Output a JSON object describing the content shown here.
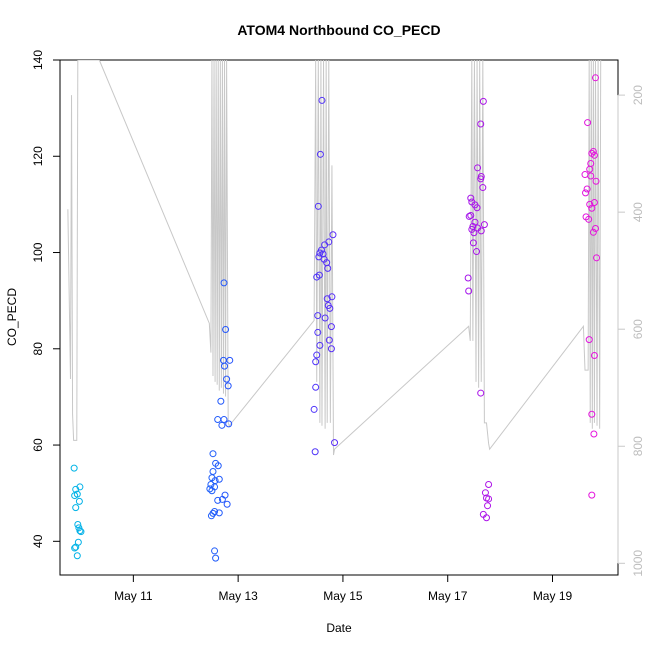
{
  "chart_data": {
    "type": "scatter",
    "title": "ATOM4 Northbound CO_PECD",
    "xlabel": "Date",
    "ylabel": "CO_PECD",
    "xlim": [
      9.6,
      20.25
    ],
    "ylim": [
      33,
      140
    ],
    "x_ticks": [
      {
        "value": 11,
        "label": "May 11"
      },
      {
        "value": 13,
        "label": "May 13"
      },
      {
        "value": 15,
        "label": "May 15"
      },
      {
        "value": 17,
        "label": "May 17"
      },
      {
        "value": 19,
        "label": "May 19"
      }
    ],
    "y_ticks": [
      40,
      60,
      80,
      100,
      120,
      140
    ],
    "right_axis": {
      "range_top_to_bottom": [
        140,
        1020
      ],
      "ticks": [
        200,
        400,
        600,
        800,
        1000
      ]
    },
    "color_gradient": [
      "#00b4e6",
      "#2848ff",
      "#8c14f0",
      "#e614dc"
    ],
    "series": [
      {
        "name": "CO_PECD",
        "points": [
          [
            9.87,
            55.2
          ],
          [
            9.88,
            49.5
          ],
          [
            9.9,
            50.8
          ],
          [
            9.93,
            49.8
          ],
          [
            9.98,
            51.3
          ],
          [
            9.9,
            47
          ],
          [
            9.97,
            48.3
          ],
          [
            9.94,
            43.5
          ],
          [
            9.96,
            42.8
          ],
          [
            9.98,
            42.2
          ],
          [
            10.0,
            42
          ],
          [
            9.95,
            39.8
          ],
          [
            9.88,
            38.6
          ],
          [
            9.9,
            38.8
          ],
          [
            9.93,
            37
          ],
          [
            12.52,
            58.2
          ],
          [
            12.57,
            56.2
          ],
          [
            12.62,
            55.7
          ],
          [
            12.52,
            54.5
          ],
          [
            12.5,
            53.2
          ],
          [
            12.56,
            52.6
          ],
          [
            12.64,
            52.9
          ],
          [
            12.48,
            51.8
          ],
          [
            12.5,
            50.5
          ],
          [
            12.46,
            50.9
          ],
          [
            12.55,
            51.3
          ],
          [
            12.75,
            49.6
          ],
          [
            12.7,
            48.7
          ],
          [
            12.79,
            47.7
          ],
          [
            12.61,
            48.5
          ],
          [
            12.55,
            46.2
          ],
          [
            12.49,
            45.3
          ],
          [
            12.52,
            45.8
          ],
          [
            12.64,
            45.9
          ],
          [
            12.55,
            38
          ],
          [
            12.57,
            36.5
          ],
          [
            12.73,
            93.7
          ],
          [
            12.76,
            84
          ],
          [
            12.72,
            77.6
          ],
          [
            12.84,
            77.6
          ],
          [
            12.74,
            76.4
          ],
          [
            12.78,
            73.7
          ],
          [
            12.81,
            72.3
          ],
          [
            12.67,
            69.1
          ],
          [
            12.61,
            65.3
          ],
          [
            12.73,
            65.3
          ],
          [
            12.69,
            64.1
          ],
          [
            12.82,
            64.4
          ],
          [
            14.6,
            131.6
          ],
          [
            14.57,
            120.4
          ],
          [
            14.53,
            109.6
          ],
          [
            14.81,
            103.7
          ],
          [
            14.73,
            102.2
          ],
          [
            14.65,
            101.6
          ],
          [
            14.59,
            100.5
          ],
          [
            14.56,
            99.9
          ],
          [
            14.62,
            99.7
          ],
          [
            14.54,
            99.1
          ],
          [
            14.64,
            98.6
          ],
          [
            14.69,
            97.9
          ],
          [
            14.71,
            96.7
          ],
          [
            14.55,
            95.3
          ],
          [
            14.5,
            94.9
          ],
          [
            14.72,
            89
          ],
          [
            14.75,
            88.4
          ],
          [
            14.79,
            90.8
          ],
          [
            14.7,
            90.4
          ],
          [
            14.52,
            86.9
          ],
          [
            14.66,
            86.4
          ],
          [
            14.78,
            84.6
          ],
          [
            14.52,
            83.4
          ],
          [
            14.56,
            80.7
          ],
          [
            14.74,
            81.8
          ],
          [
            14.78,
            80
          ],
          [
            14.5,
            78.7
          ],
          [
            14.48,
            77.3
          ],
          [
            14.48,
            72
          ],
          [
            14.45,
            67.4
          ],
          [
            14.47,
            58.6
          ],
          [
            14.84,
            60.5
          ],
          [
            17.68,
            131.4
          ],
          [
            17.63,
            126.7
          ],
          [
            17.57,
            117.6
          ],
          [
            17.64,
            115.8
          ],
          [
            17.63,
            115.3
          ],
          [
            17.67,
            113.5
          ],
          [
            17.44,
            111.3
          ],
          [
            17.46,
            110.5
          ],
          [
            17.52,
            109.9
          ],
          [
            17.56,
            109.3
          ],
          [
            17.44,
            107.7
          ],
          [
            17.41,
            107.5
          ],
          [
            17.48,
            105.4
          ],
          [
            17.52,
            106.3
          ],
          [
            17.46,
            104.8
          ],
          [
            17.5,
            104.1
          ],
          [
            17.57,
            105.1
          ],
          [
            17.64,
            104.5
          ],
          [
            17.7,
            105.8
          ],
          [
            17.49,
            102
          ],
          [
            17.55,
            100.2
          ],
          [
            17.39,
            94.7
          ],
          [
            17.4,
            92
          ],
          [
            17.63,
            70.8
          ],
          [
            17.78,
            51.8
          ],
          [
            17.72,
            50.1
          ],
          [
            17.74,
            49
          ],
          [
            17.78,
            48.8
          ],
          [
            17.76,
            47.4
          ],
          [
            17.68,
            45.6
          ],
          [
            17.74,
            44.9
          ],
          [
            19.82,
            136.3
          ],
          [
            19.67,
            127
          ],
          [
            19.78,
            121
          ],
          [
            19.8,
            120.2
          ],
          [
            19.75,
            120.6
          ],
          [
            19.73,
            118.5
          ],
          [
            19.71,
            117.3
          ],
          [
            19.62,
            116.2
          ],
          [
            19.73,
            115.9
          ],
          [
            19.83,
            114.8
          ],
          [
            19.66,
            113.2
          ],
          [
            19.63,
            112.4
          ],
          [
            19.8,
            110.4
          ],
          [
            19.71,
            110
          ],
          [
            19.75,
            109.2
          ],
          [
            19.64,
            107.4
          ],
          [
            19.69,
            106.9
          ],
          [
            19.82,
            105
          ],
          [
            19.78,
            104.2
          ],
          [
            19.84,
            98.9
          ],
          [
            19.7,
            81.9
          ],
          [
            19.8,
            78.6
          ],
          [
            19.75,
            66.4
          ],
          [
            19.79,
            62.3
          ],
          [
            19.75,
            49.6
          ]
        ]
      },
      {
        "name": "right-axis gray trace",
        "axis": "right",
        "points": [
          [
            9.75,
            395
          ],
          [
            9.8,
            685
          ],
          [
            9.82,
            200
          ],
          [
            9.84,
            745
          ],
          [
            9.86,
            790
          ],
          [
            9.92,
            790
          ],
          [
            9.94,
            140
          ],
          [
            10.35,
            140
          ],
          [
            12.45,
            590
          ],
          [
            12.48,
            640
          ],
          [
            12.5,
            140
          ],
          [
            12.52,
            680
          ],
          [
            12.54,
            140
          ],
          [
            12.56,
            690
          ],
          [
            12.58,
            140
          ],
          [
            12.6,
            695
          ],
          [
            12.62,
            140
          ],
          [
            12.64,
            705
          ],
          [
            12.66,
            140
          ],
          [
            12.68,
            700
          ],
          [
            12.7,
            140
          ],
          [
            12.72,
            710
          ],
          [
            12.74,
            140
          ],
          [
            12.76,
            715
          ],
          [
            12.78,
            140
          ],
          [
            12.81,
            760
          ],
          [
            12.83,
            765
          ],
          [
            14.45,
            585
          ],
          [
            14.48,
            140
          ],
          [
            14.5,
            690
          ],
          [
            14.53,
            140
          ],
          [
            14.56,
            760
          ],
          [
            14.58,
            140
          ],
          [
            14.6,
            765
          ],
          [
            14.63,
            140
          ],
          [
            14.66,
            770
          ],
          [
            14.68,
            140
          ],
          [
            14.7,
            760
          ],
          [
            14.73,
            140
          ],
          [
            14.76,
            760
          ],
          [
            14.79,
            320
          ],
          [
            14.82,
            815
          ],
          [
            14.84,
            805
          ],
          [
            17.4,
            595
          ],
          [
            17.43,
            620
          ],
          [
            17.46,
            140
          ],
          [
            17.48,
            620
          ],
          [
            17.51,
            140
          ],
          [
            17.54,
            690
          ],
          [
            17.56,
            140
          ],
          [
            17.59,
            700
          ],
          [
            17.61,
            140
          ],
          [
            17.64,
            690
          ],
          [
            17.67,
            140
          ],
          [
            17.7,
            760
          ],
          [
            17.74,
            760
          ],
          [
            17.78,
            795
          ],
          [
            17.8,
            805
          ],
          [
            19.59,
            595
          ],
          [
            19.62,
            670
          ],
          [
            19.68,
            670
          ],
          [
            19.7,
            140
          ],
          [
            19.72,
            760
          ],
          [
            19.74,
            140
          ],
          [
            19.76,
            770
          ],
          [
            19.78,
            140
          ],
          [
            19.8,
            760
          ],
          [
            19.82,
            140
          ],
          [
            19.85,
            765
          ],
          [
            19.87,
            140
          ],
          [
            19.9,
            770
          ],
          [
            19.92,
            140
          ]
        ]
      }
    ]
  }
}
